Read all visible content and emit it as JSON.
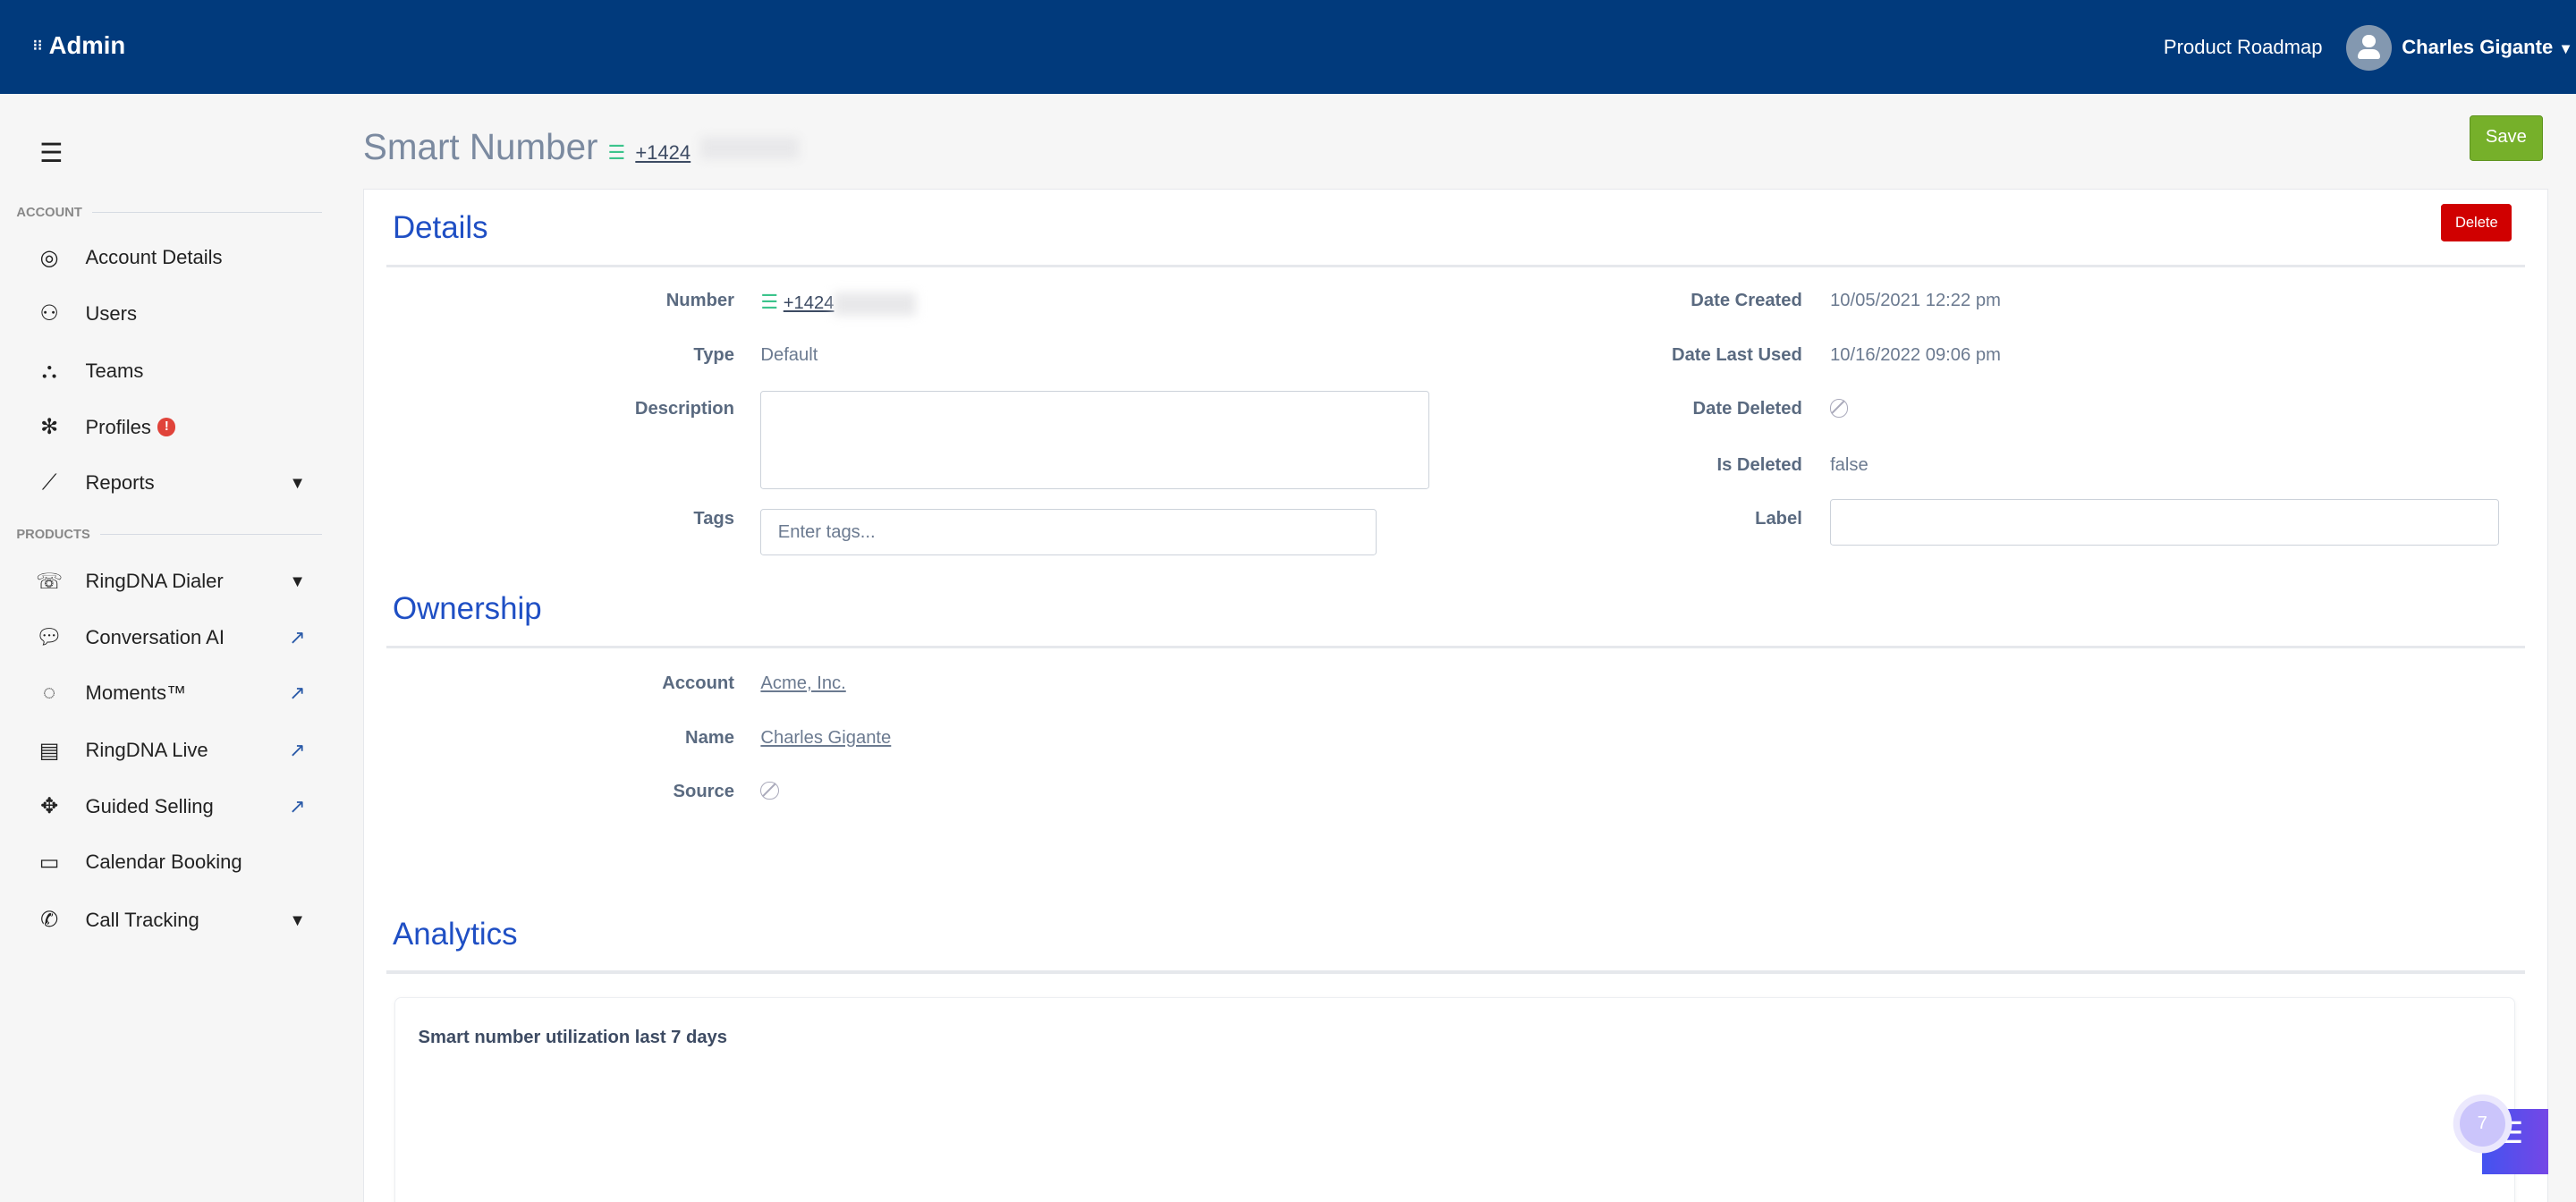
{
  "header": {
    "app": "Admin",
    "roadmap": "Product Roadmap",
    "user": "Charles Gigante"
  },
  "sidebar": {
    "account_section": "ACCOUNT",
    "products_section": "PRODUCTS",
    "account_items": [
      {
        "label": "Account Details",
        "icon": "user-circle-icon"
      },
      {
        "label": "Users",
        "icon": "users-icon"
      },
      {
        "label": "Teams",
        "icon": "teams-icon"
      },
      {
        "label": "Profiles",
        "icon": "profiles-icon",
        "badge": "!"
      },
      {
        "label": "Reports",
        "icon": "chart-icon"
      }
    ],
    "product_items": [
      {
        "label": "RingDNA Dialer",
        "icon": "phone-icon"
      },
      {
        "label": "Conversation AI",
        "icon": "speech-bubble-icon"
      },
      {
        "label": "Moments™",
        "icon": "moments-icon"
      },
      {
        "label": "RingDNA Live",
        "icon": "live-icon"
      },
      {
        "label": "Guided Selling",
        "icon": "arrows-icon"
      },
      {
        "label": "Calendar Booking",
        "icon": "calendar-icon"
      },
      {
        "label": "Call Tracking",
        "icon": "call-tracking-icon"
      }
    ]
  },
  "page": {
    "title": "Smart Number",
    "number": "+1424",
    "save": "Save",
    "delete": "Delete"
  },
  "details": {
    "heading": "Details",
    "number_label": "Number",
    "number": "+1424",
    "type_label": "Type",
    "type": "Default",
    "description_label": "Description",
    "description": "",
    "tags_label": "Tags",
    "tags_placeholder": "Enter tags...",
    "date_created_label": "Date Created",
    "date_created": "10/05/2021 12:22 pm",
    "date_last_used_label": "Date Last Used",
    "date_last_used": "10/16/2022 09:06 pm",
    "date_deleted_label": "Date Deleted",
    "is_deleted_label": "Is Deleted",
    "is_deleted": "false",
    "label_label": "Label",
    "label": ""
  },
  "ownership": {
    "heading": "Ownership",
    "account_label": "Account",
    "account": "Acme, Inc.",
    "name_label": "Name",
    "name": "Charles Gigante",
    "source_label": "Source"
  },
  "analytics": {
    "heading": "Analytics",
    "chart_title": "Smart number utilization last 7 days"
  },
  "widget": {
    "count": "7"
  },
  "colors": {
    "header": "#013a7c",
    "accent": "#1f4fc4",
    "save": "#76b02a",
    "delete": "#d00000"
  }
}
